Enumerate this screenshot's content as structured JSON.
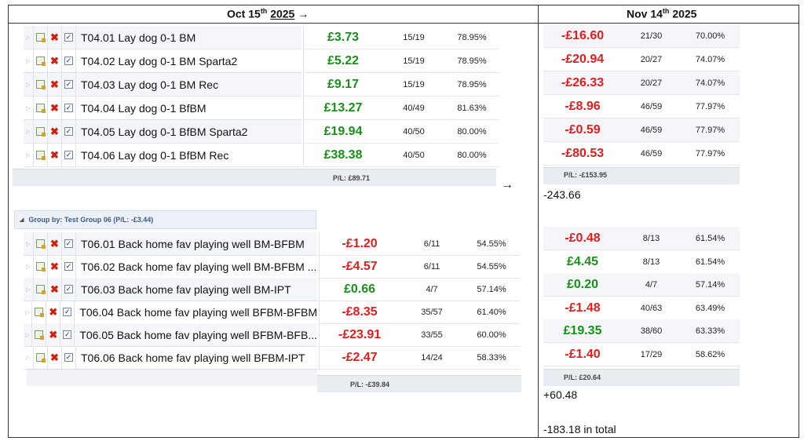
{
  "header": {
    "left_day": "Oct 15",
    "left_sup": "th",
    "left_year": "2025",
    "left_arrow": "→",
    "right_day": "Nov 14",
    "right_sup": "th",
    "right_year": "2025"
  },
  "group1": {
    "rows": [
      {
        "name": "T04.01 Lay dog 0-1 BM",
        "pl": "£3.73",
        "count": "15/19",
        "pct": "78.95%"
      },
      {
        "name": "T04.02 Lay dog 0-1 BM Sparta2",
        "pl": "£5.22",
        "count": "15/19",
        "pct": "78.95%"
      },
      {
        "name": "T04.03 Lay dog 0-1 BM Rec",
        "pl": "£9.17",
        "count": "15/19",
        "pct": "78.95%"
      },
      {
        "name": "T04.04 Lay dog 0-1 BfBM",
        "pl": "£13.27",
        "count": "40/49",
        "pct": "81.63%"
      },
      {
        "name": "T04.05 Lay dog 0-1 BfBM Sparta2",
        "pl": "£19.94",
        "count": "40/50",
        "pct": "80.00%"
      },
      {
        "name": "T04.06 Lay dog 0-1 BfBM Rec",
        "pl": "£38.38",
        "count": "40/50",
        "pct": "80.00%"
      }
    ],
    "summary": "P/L: £89.71",
    "right_rows": [
      {
        "pl": "-£16.60",
        "count": "21/30",
        "pct": "70.00%"
      },
      {
        "pl": "-£20.94",
        "count": "20/27",
        "pct": "74.07%"
      },
      {
        "pl": "-£26.33",
        "count": "20/27",
        "pct": "74.07%"
      },
      {
        "pl": "-£8.96",
        "count": "46/59",
        "pct": "77.97%"
      },
      {
        "pl": "-£0.59",
        "count": "46/59",
        "pct": "77.97%"
      },
      {
        "pl": "-£80.53",
        "count": "46/59",
        "pct": "77.97%"
      }
    ],
    "right_summary": "P/L: -£153.95",
    "diff_arrow": "→",
    "diff": "-243.66"
  },
  "group2": {
    "title": "Group by: Test Group 06 (P/L: -£3.44)",
    "rows": [
      {
        "name": "T06.01 Back home fav playing well BM-BFBM",
        "pl": "-£1.20",
        "count": "6/11",
        "pct": "54.55%"
      },
      {
        "name": "T06.02 Back home fav playing well BM-BFBM ...",
        "pl": "-£4.57",
        "count": "6/11",
        "pct": "54.55%"
      },
      {
        "name": "T06.03 Back home fav playing well BM-IPT",
        "pl": "£0.66",
        "count": "4/7",
        "pct": "57.14%"
      },
      {
        "name": "T06.04 Back home fav playing well BFBM-BFBM",
        "pl": "-£8.35",
        "count": "35/57",
        "pct": "61.40%"
      },
      {
        "name": "T06.05 Back home fav playing well BFBM-BFB...",
        "pl": "-£23.91",
        "count": "33/55",
        "pct": "60.00%"
      },
      {
        "name": "T06.06 Back home fav playing well BFBM-IPT",
        "pl": "-£2.47",
        "count": "14/24",
        "pct": "58.33%"
      }
    ],
    "summary": "P/L: -£39.84",
    "right_rows": [
      {
        "pl": "-£0.48",
        "count": "8/13",
        "pct": "61.54%"
      },
      {
        "pl": "£4.45",
        "count": "8/13",
        "pct": "61.54%"
      },
      {
        "pl": "£0.20",
        "count": "4/7",
        "pct": "57.14%"
      },
      {
        "pl": "-£1.48",
        "count": "40/63",
        "pct": "63.49%"
      },
      {
        "pl": "£19.35",
        "count": "38/60",
        "pct": "63.33%"
      },
      {
        "pl": "-£1.40",
        "count": "17/29",
        "pct": "58.62%"
      }
    ],
    "right_summary": "P/L: £20.64",
    "diff": "+60.48"
  },
  "total": "-183.18 in total",
  "icons": {
    "expand": "expand-triangle-icon",
    "edit": "edit-strategy-icon",
    "delete": "delete-x-icon",
    "checkbox": "checked-checkbox-icon"
  },
  "colors": {
    "positive": "#1a8f1a",
    "negative": "#e01e1e"
  }
}
